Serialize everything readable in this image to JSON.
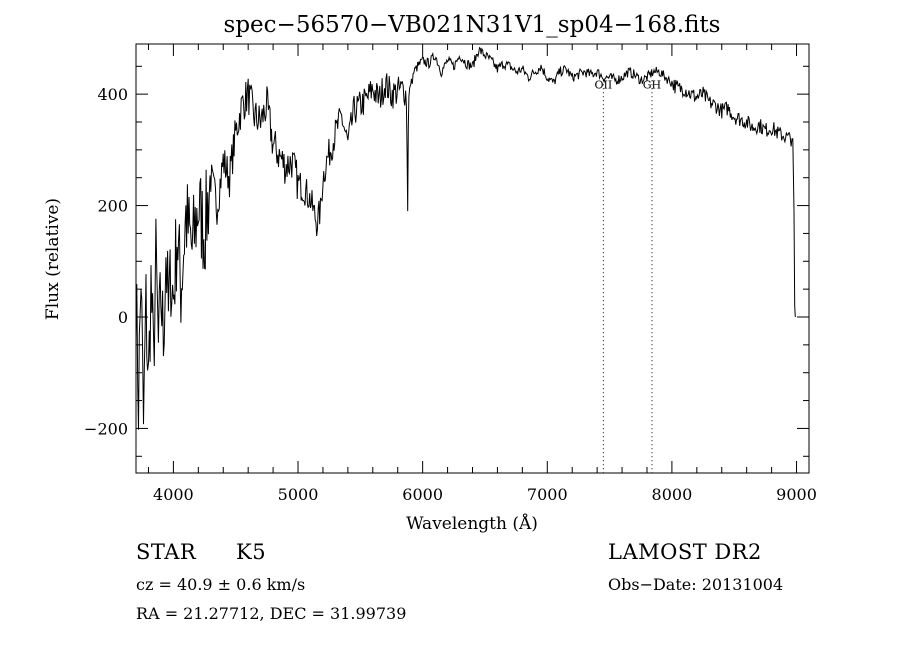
{
  "chart_data": {
    "type": "line",
    "title": "spec−56570−VB021N31V1_sp04−168.fits",
    "xlabel": "Wavelength (Å)",
    "ylabel": "Flux (relative)",
    "xlim": [
      3700,
      9100
    ],
    "ylim": [
      -280,
      490
    ],
    "x_ticks": [
      4000,
      5000,
      6000,
      7000,
      8000,
      9000
    ],
    "x_tick_labels": [
      "4000",
      "5000",
      "6000",
      "7000",
      "8000",
      "9000"
    ],
    "y_ticks": [
      -200,
      0,
      200,
      400
    ],
    "y_tick_labels": [
      "−200",
      "0",
      "200",
      "400"
    ],
    "x_minor_step": 200,
    "y_minor_step": 50,
    "grid": false,
    "series": [
      {
        "name": "flux",
        "x": [
          3700,
          3720,
          3740,
          3760,
          3780,
          3800,
          3820,
          3840,
          3860,
          3880,
          3900,
          3920,
          3940,
          3960,
          3980,
          4000,
          4030,
          4060,
          4100,
          4150,
          4200,
          4250,
          4300,
          4350,
          4400,
          4450,
          4500,
          4550,
          4600,
          4650,
          4700,
          4750,
          4800,
          4850,
          4900,
          4950,
          5000,
          5050,
          5100,
          5150,
          5180,
          5200,
          5230,
          5260,
          5300,
          5350,
          5400,
          5450,
          5500,
          5550,
          5600,
          5650,
          5700,
          5750,
          5800,
          5850,
          5870,
          5880,
          5885,
          5890,
          5895,
          5900,
          5910,
          5930,
          5960,
          6000,
          6050,
          6100,
          6150,
          6200,
          6250,
          6300,
          6350,
          6400,
          6450,
          6500,
          6550,
          6600,
          6650,
          6700,
          6750,
          6800,
          6850,
          6900,
          6950,
          7000,
          7050,
          7100,
          7150,
          7200,
          7250,
          7300,
          7350,
          7400,
          7450,
          7500,
          7550,
          7600,
          7650,
          7700,
          7750,
          7800,
          7850,
          7900,
          7950,
          8000,
          8050,
          8100,
          8150,
          8200,
          8250,
          8300,
          8350,
          8400,
          8450,
          8500,
          8550,
          8600,
          8650,
          8700,
          8750,
          8800,
          8850,
          8900,
          8950,
          8970,
          8980,
          8985,
          8990
        ],
        "y": [
          50,
          -150,
          80,
          -200,
          20,
          -120,
          60,
          -80,
          100,
          -60,
          40,
          -40,
          120,
          0,
          80,
          30,
          150,
          50,
          180,
          120,
          200,
          150,
          250,
          200,
          280,
          250,
          330,
          380,
          400,
          360,
          350,
          380,
          310,
          290,
          270,
          280,
          240,
          230,
          210,
          170,
          190,
          250,
          280,
          300,
          330,
          360,
          310,
          370,
          380,
          390,
          410,
          390,
          420,
          400,
          405,
          410,
          395,
          190,
          340,
          395,
          410,
          415,
          420,
          440,
          450,
          460,
          455,
          470,
          440,
          460,
          450,
          470,
          455,
          450,
          480,
          470,
          460,
          445,
          455,
          450,
          440,
          445,
          430,
          440,
          450,
          430,
          420,
          440,
          445,
          430,
          435,
          440,
          435,
          440,
          430,
          430,
          425,
          430,
          440,
          435,
          425,
          430,
          440,
          440,
          430,
          420,
          410,
          410,
          400,
          395,
          400,
          385,
          380,
          370,
          375,
          360,
          355,
          350,
          340,
          345,
          335,
          340,
          330,
          325,
          320,
          320,
          190,
          20,
          0
        ]
      }
    ],
    "lines": [
      {
        "label": "OII",
        "x": 7450
      },
      {
        "label": "GH",
        "x": 7840
      }
    ]
  },
  "info": {
    "object_class": "STAR",
    "subclass": "K5",
    "survey": "LAMOST DR2",
    "cz": "cz = 40.9 ± 0.6 km/s",
    "obs_date": "Obs−Date: 20131004",
    "coords": "RA =  21.27712, DEC =  31.99739"
  }
}
